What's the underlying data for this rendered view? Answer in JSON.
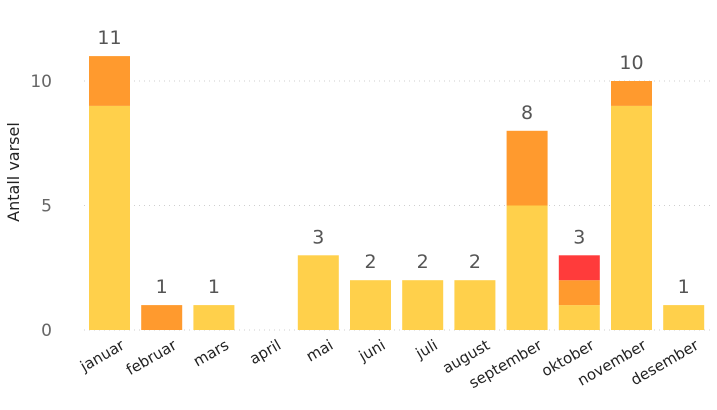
{
  "chart_data": {
    "type": "bar",
    "stacked": true,
    "ylabel": "Antall varsel",
    "ylim": [
      0,
      12
    ],
    "yticks": [
      0,
      5,
      10
    ],
    "grid": true,
    "categories": [
      "januar",
      "februar",
      "mars",
      "april",
      "mai",
      "juni",
      "juli",
      "august",
      "september",
      "oktober",
      "november",
      "desember"
    ],
    "series": [
      {
        "color": "#FFD04B",
        "values": [
          9,
          0,
          1,
          0,
          3,
          2,
          2,
          2,
          5,
          1,
          9,
          1
        ]
      },
      {
        "color": "#FF9A2E",
        "values": [
          2,
          1,
          0,
          0,
          0,
          0,
          0,
          0,
          3,
          1,
          1,
          0
        ]
      },
      {
        "color": "#FF3B3B",
        "values": [
          0,
          0,
          0,
          0,
          0,
          0,
          0,
          0,
          0,
          1,
          0,
          0
        ]
      }
    ],
    "totals": [
      "11",
      "1",
      "1",
      "",
      "3",
      "2",
      "2",
      "2",
      "8",
      "3",
      "10",
      "1"
    ]
  }
}
